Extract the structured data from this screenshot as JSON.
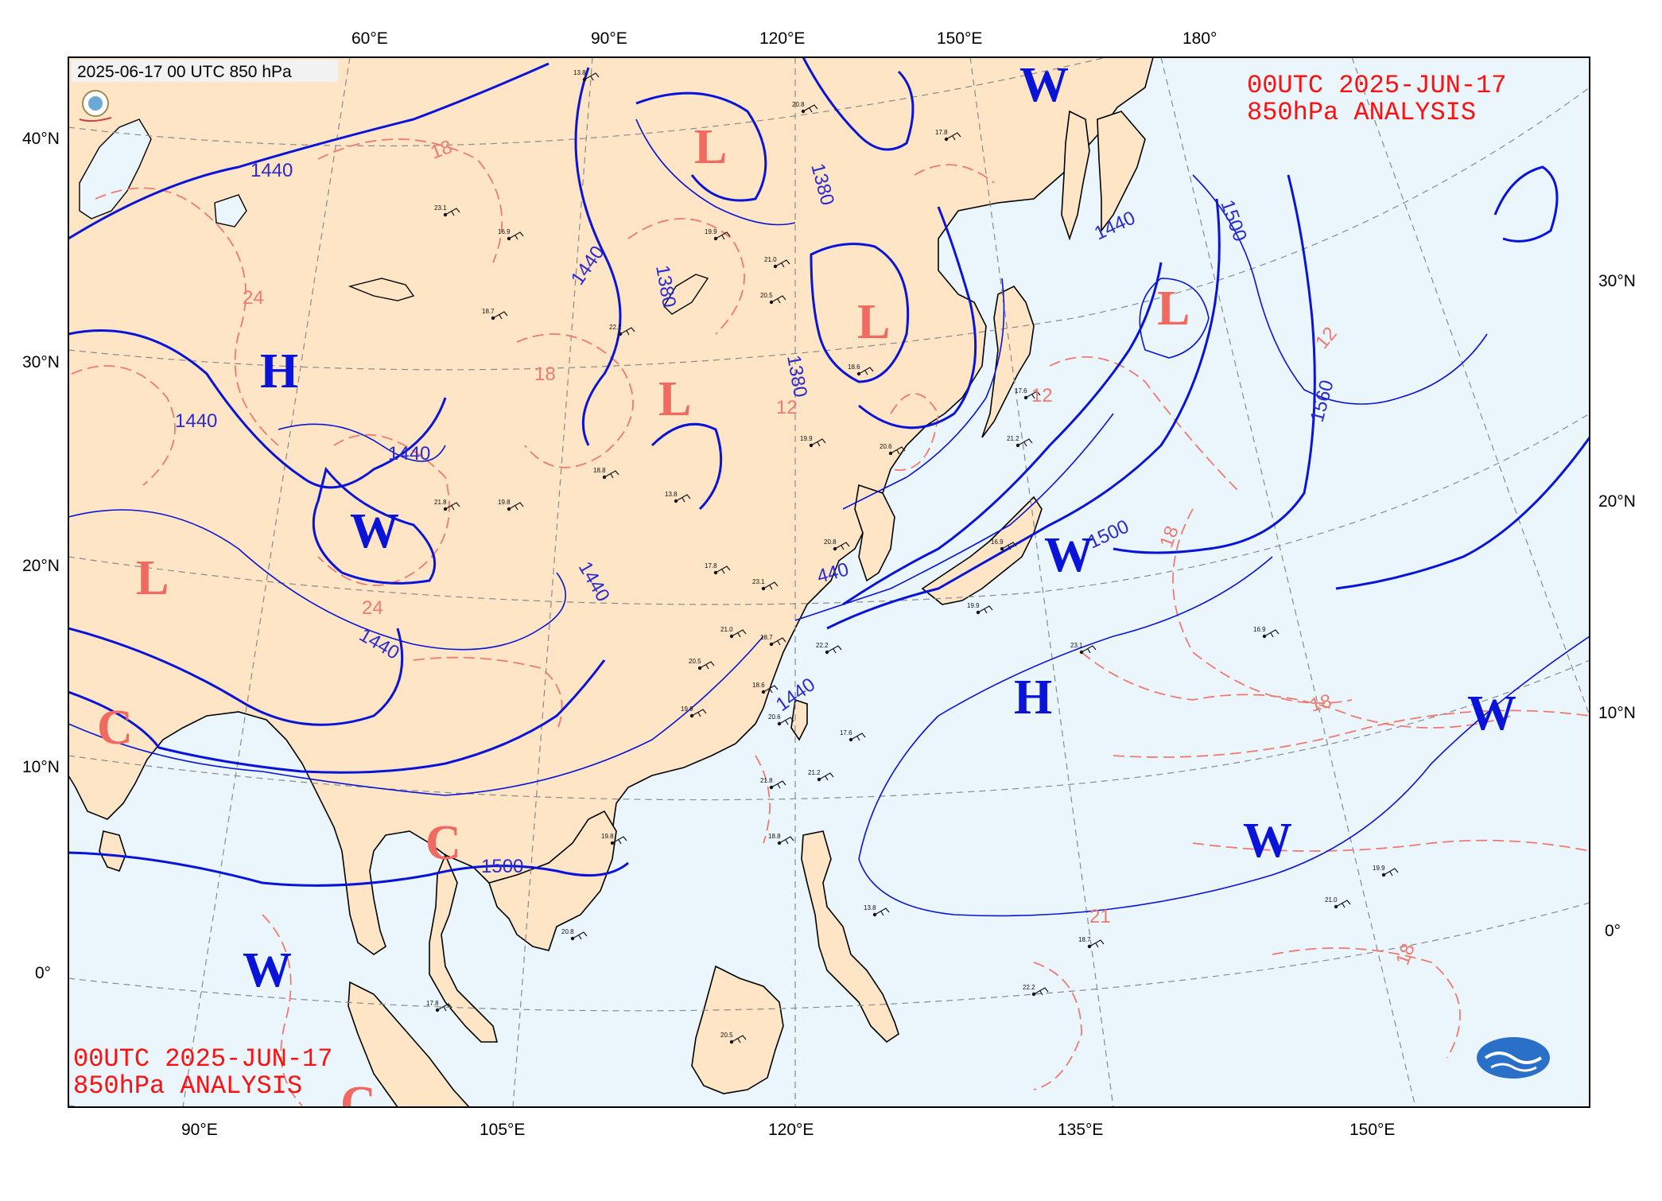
{
  "map": {
    "timestamp": "2025-06-17 00 UTC 850 hPa",
    "title_top": [
      "00UTC  2025-JUN-17",
      "850hPa ANALYSIS"
    ],
    "title_bottom": [
      "00UTC  2025-JUN-17",
      "850hPa ANALYSIS"
    ],
    "top_lon_ticks": [
      "60°E",
      "90°E",
      "120°E",
      "150°E",
      "180°"
    ],
    "bottom_lon_ticks": [
      "90°E",
      "105°E",
      "120°E",
      "135°E",
      "150°E"
    ],
    "left_lat_ticks": [
      "40°N",
      "30°N",
      "20°N",
      "10°N",
      "0°"
    ],
    "right_lat_ticks": [
      "30°N",
      "20°N",
      "10°N",
      "0°"
    ],
    "height_contour_labels": [
      "1440",
      "1440",
      "1440",
      "1440",
      "1440",
      "1440",
      "1380",
      "1380",
      "1380",
      "1440",
      "1500",
      "1500",
      "1500",
      "1560",
      "440",
      "1440"
    ],
    "temperature_labels": [
      "18",
      "24",
      "18",
      "12",
      "24",
      "12",
      "12",
      "18",
      "18",
      "18",
      "21"
    ],
    "pressure_systems": [
      {
        "label": "W",
        "color": "blue"
      },
      {
        "label": "W",
        "color": "blue"
      },
      {
        "label": "W",
        "color": "blue"
      },
      {
        "label": "W",
        "color": "blue"
      },
      {
        "label": "W",
        "color": "blue"
      },
      {
        "label": "W",
        "color": "blue"
      },
      {
        "label": "H",
        "color": "blue"
      },
      {
        "label": "H",
        "color": "blue"
      },
      {
        "label": "L",
        "color": "red"
      },
      {
        "label": "L",
        "color": "red"
      },
      {
        "label": "L",
        "color": "red"
      },
      {
        "label": "L",
        "color": "red"
      },
      {
        "label": "L",
        "color": "red"
      },
      {
        "label": "C",
        "color": "red"
      },
      {
        "label": "C",
        "color": "red"
      },
      {
        "label": "C",
        "color": "red"
      }
    ],
    "station_samples": [
      "13.8",
      "20.8",
      "17.8",
      "23.1",
      "16.9",
      "19.9",
      "21.0",
      "18.7",
      "22.2",
      "20.5",
      "18.6",
      "19.9",
      "20.6",
      "17.6",
      "21.2",
      "21.8",
      "19.8",
      "18.8"
    ],
    "colors": {
      "land": "#fde5c6",
      "ocean": "#eaf6fc",
      "height_contour": "#0a14d8",
      "temperature_contour": "#f07a72",
      "grid": "#8a8a8a",
      "title": "#ff1010"
    }
  }
}
